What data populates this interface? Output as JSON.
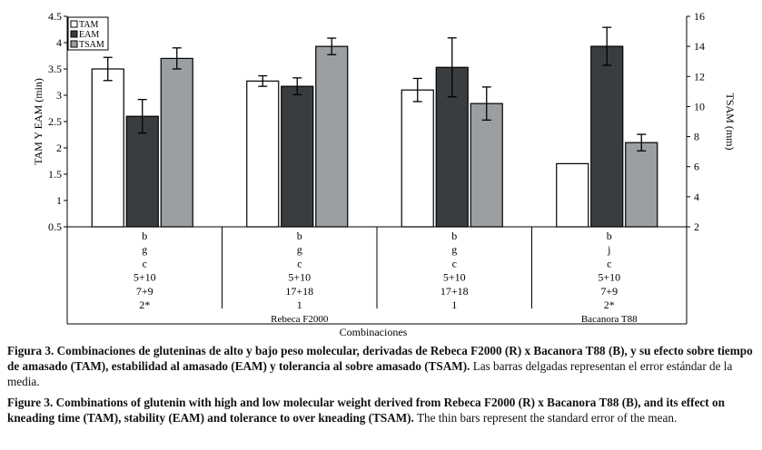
{
  "chart_data": {
    "type": "bar",
    "left_axis": {
      "label": "TAM Y EAM (min)",
      "min": 0.5,
      "max": 4.5,
      "ticks": [
        "0.5",
        "1",
        "1.5",
        "2",
        "2.5",
        "3",
        "3.5",
        "4",
        "4.5"
      ]
    },
    "right_axis": {
      "label": "TSAM (mm)",
      "min": 2,
      "max": 16,
      "ticks": [
        "2",
        "4",
        "6",
        "8",
        "10",
        "12",
        "14",
        "16"
      ]
    },
    "legend": [
      {
        "name": "TAM",
        "color": "#ffffff"
      },
      {
        "name": "EAM",
        "color": "#3a3d40"
      },
      {
        "name": "TSAM",
        "color": "#9c9fa2"
      }
    ],
    "groups": [
      {
        "rows": [
          "b",
          "g",
          "c",
          "5+10",
          "7+9",
          "2*"
        ],
        "name": "",
        "TAM": 3.5,
        "TAM_err": 0.22,
        "EAM": 2.6,
        "EAM_err": 0.32,
        "TSAM": 13.2,
        "TSAM_err": 0.7
      },
      {
        "rows": [
          "b",
          "g",
          "c",
          "5+10",
          "17+18",
          "1"
        ],
        "name": "Rebeca F2000",
        "TAM": 3.27,
        "TAM_err": 0.1,
        "EAM": 3.17,
        "EAM_err": 0.16,
        "TSAM": 14.0,
        "TSAM_err": 0.55
      },
      {
        "rows": [
          "b",
          "g",
          "c",
          "5+10",
          "17+18",
          "1"
        ],
        "name": "",
        "TAM": 3.1,
        "TAM_err": 0.22,
        "EAM": 3.53,
        "EAM_err": 0.56,
        "TSAM": 10.2,
        "TSAM_err": 1.1
      },
      {
        "rows": [
          "b",
          "j",
          "c",
          "5+10",
          "7+9",
          "2*"
        ],
        "name": "Bacanora T88",
        "TAM": 1.7,
        "TAM_err": 0.0,
        "EAM": 3.93,
        "EAM_err": 0.36,
        "TSAM": 7.6,
        "TSAM_err": 0.55
      }
    ],
    "xlabel": "Combinaciones"
  },
  "caption_es": {
    "label": "Figura 3.",
    "bold_text": "Combinaciones de gluteninas de alto y bajo peso molecular, derivadas de Rebeca F2000 (R) x Bacanora T88 (B), y su efecto sobre tiempo de amasado (TAM), estabilidad al amasado (EAM) y tolerancia al sobre amasado (TSAM).",
    "plain_text": "Las barras delgadas representan el error estándar de la media."
  },
  "caption_en": {
    "label": "Figure 3.",
    "bold_text": "Combinations of glutenin with high and low molecular weight derived from Rebeca F2000 (R) x Bacanora T88 (B), and its effect on kneading time (TAM), stability (EAM) and tolerance to over kneading (TSAM).",
    "plain_text": "The thin bars represent the standard error of the mean."
  }
}
